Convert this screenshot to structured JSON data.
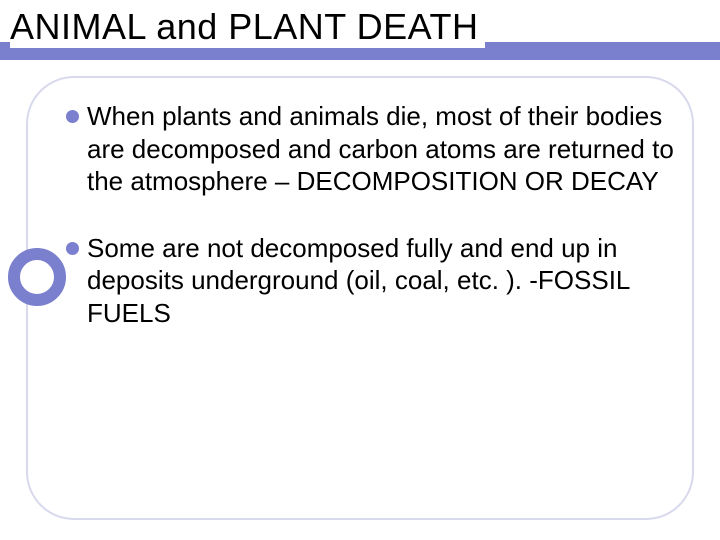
{
  "slide": {
    "title": "ANIMAL and PLANT DEATH",
    "title_color": "#000000",
    "title_fontsize": 36,
    "accent_color": "#7a7fce",
    "frame_border_color": "#d8d9ec",
    "background_color": "#ffffff",
    "bullets": [
      {
        "text": "When plants and animals die, most of their bodies are decomposed and carbon atoms are returned to the atmosphere – DECOMPOSITION OR DECAY"
      },
      {
        "text": "Some are not decomposed fully and end up in deposits underground (oil, coal, etc. ). -FOSSIL FUELS"
      }
    ],
    "bullet_fontsize": 26,
    "bullet_color": "#7a7fce",
    "text_color": "#000000"
  }
}
